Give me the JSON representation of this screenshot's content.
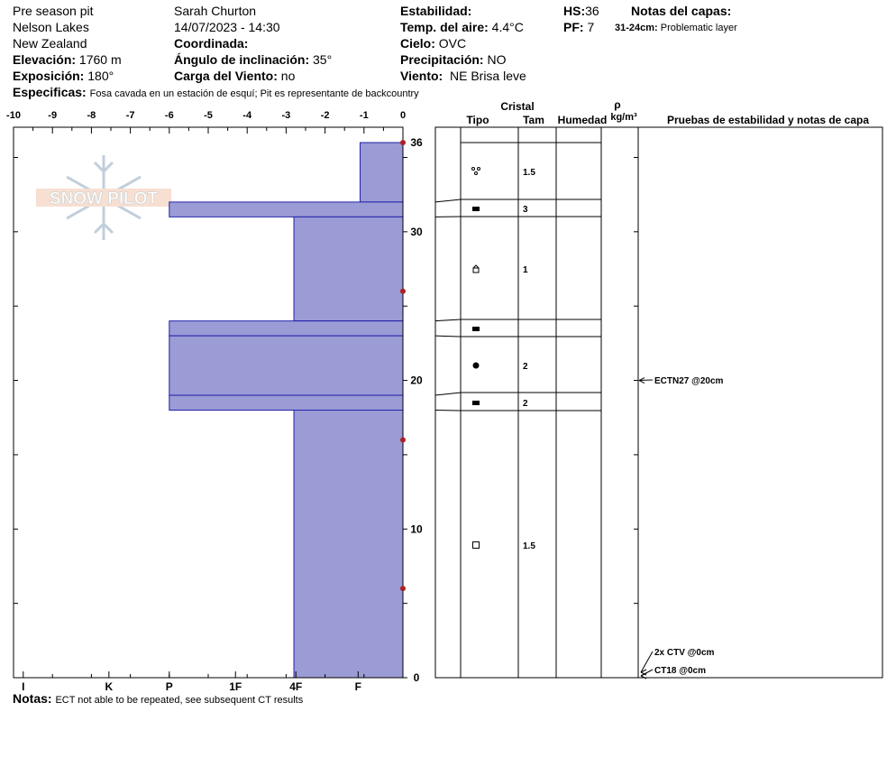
{
  "header": {
    "pit_name": "Pre season pit",
    "location1": "Nelson Lakes",
    "location2": "New Zealand",
    "elevation_label": "Elevación:",
    "elevation_value": "1760 m",
    "exposure_label": "Exposición:",
    "exposure_value": "180°",
    "observer": "Sarah Churton",
    "datetime": "14/07/2023 - 14:30",
    "coord_label": "Coordinada:",
    "slope_label": "Ángulo de inclinación:",
    "slope_value": "35°",
    "windload_label": "Carga del Viento:",
    "windload_value": "no",
    "stability_label": "Estabilidad:",
    "airtemp_label": "Temp. del aire:",
    "airtemp_value": "4.4°C",
    "sky_label": "Cielo:",
    "sky_value": "OVC",
    "precip_label": "Precipitación:",
    "precip_value": "NO",
    "wind_label": "Viento:",
    "wind_value": "NE Brisa leve",
    "hs_label": "HS:",
    "hs_value": "36",
    "pf_label": "PF:",
    "pf_value": "7",
    "layer_notes_label": "Notas del capas:",
    "layer_note_range": "31-24cm:",
    "layer_note_text": "Problematic layer",
    "specifics_label": "Especificas:",
    "specifics_text": "Fosa cavada en un estación de esquí; Pit es representante de backcountry"
  },
  "footer": {
    "notes_label": "Notas:",
    "notes_text": "ECT not able to be repeated, see subsequent CT results"
  },
  "logo_text": "SNOW PILOT",
  "columns": {
    "crystal": "Cristal",
    "type": "Tipo",
    "size": "Tam",
    "moisture": "Humedad",
    "rho": "ρ",
    "density_unit": "kg/m³",
    "tests": "Pruebas de estabilidad y notas de capa"
  },
  "colors": {
    "hardness_fill": "#9b9bd6",
    "hardness_edge": "#2222aa",
    "temp_dot": "#aa2222"
  },
  "chart_data": {
    "type": "snow-profile",
    "height_axis": {
      "min": 0,
      "max": 36,
      "ticks": [
        0,
        10,
        20,
        30,
        36
      ]
    },
    "temperature_axis": {
      "min": -10,
      "max": 0,
      "ticks": [
        "-10",
        "-9",
        "-8",
        "-7",
        "-6",
        "-5",
        "-4",
        "-3",
        "-2",
        "-1",
        "0"
      ]
    },
    "hardness_axis": {
      "labels": [
        "I",
        "K",
        "P",
        "1F",
        "4F",
        "F"
      ],
      "positions": [
        -9.75,
        -7.55,
        -6,
        -4.3,
        -2.75,
        -1.15
      ]
    },
    "temperature_profile": [
      {
        "height": 36,
        "temp": 0
      },
      {
        "height": 26,
        "temp": 0
      },
      {
        "height": 16,
        "temp": 0
      },
      {
        "height": 6,
        "temp": 0
      }
    ],
    "layers": [
      {
        "top": 36,
        "bottom": 32,
        "hardness": -1.1,
        "grain": "precip-particles",
        "size": "1.5"
      },
      {
        "top": 32,
        "bottom": 31,
        "hardness": -6,
        "grain": "crust",
        "size": "3"
      },
      {
        "top": 31,
        "bottom": 24,
        "hardness": -2.8,
        "grain": "faceted",
        "size": "1"
      },
      {
        "top": 24,
        "bottom": 23,
        "hardness": -6,
        "grain": "crust",
        "size": ""
      },
      {
        "top": 23,
        "bottom": 19,
        "hardness": -6,
        "grain": "rounded",
        "size": "2"
      },
      {
        "top": 19,
        "bottom": 18,
        "hardness": -6,
        "grain": "crust",
        "size": "2"
      },
      {
        "top": 18,
        "bottom": 0,
        "hardness": -2.8,
        "grain": "faceted-square",
        "size": "1.5"
      }
    ],
    "stability_tests": [
      {
        "label": "ECTN27 @20cm",
        "height": 20
      },
      {
        "label": "2x CTV @0cm",
        "height": 0
      },
      {
        "label": "CT18 @0cm",
        "height": 0
      }
    ]
  }
}
